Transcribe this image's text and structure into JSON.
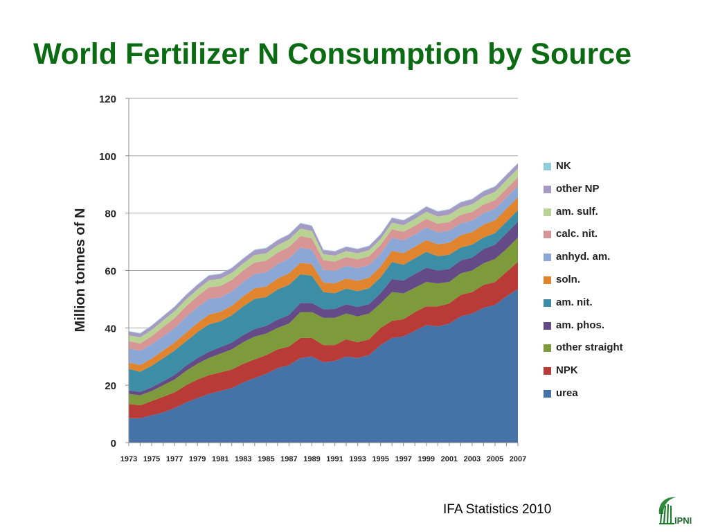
{
  "title": "World Fertilizer N Consumption by Source",
  "source": "IFA Statistics 2010",
  "logo_text": "IPNI",
  "chart_data": {
    "type": "area",
    "stacked": true,
    "ylabel": "Million tonnes of N",
    "ylim": [
      0,
      120
    ],
    "yticks": [
      0,
      20,
      40,
      60,
      80,
      100,
      120
    ],
    "grid": true,
    "legend_position": "right",
    "x": [
      1973,
      1974,
      1975,
      1976,
      1977,
      1978,
      1979,
      1980,
      1981,
      1982,
      1983,
      1984,
      1985,
      1986,
      1987,
      1988,
      1989,
      1990,
      1991,
      1992,
      1993,
      1994,
      1995,
      1996,
      1997,
      1998,
      1999,
      2000,
      2001,
      2002,
      2003,
      2004,
      2005,
      2006,
      2007
    ],
    "xtick_labels": [
      "1973",
      "1975",
      "1977",
      "1979",
      "1981",
      "1983",
      "1985",
      "1987",
      "1989",
      "1991",
      "1993",
      "1995",
      "1997",
      "1999",
      "2001",
      "2003",
      "2005",
      "2007"
    ],
    "series": [
      {
        "name": "urea",
        "color": "#4572a7",
        "values": [
          8.5,
          8.5,
          9.5,
          10.5,
          12,
          14,
          15.5,
          17,
          18,
          19,
          21,
          22.5,
          24,
          26,
          27,
          29.5,
          30,
          28,
          28.5,
          30,
          29.5,
          30.5,
          34,
          36.5,
          37,
          39,
          41,
          40.5,
          41.5,
          44,
          45,
          47,
          48,
          51,
          53.5
        ]
      },
      {
        "name": "NPK",
        "color": "#b93b38",
        "values": [
          5,
          4.5,
          5,
          5.5,
          5.5,
          6,
          6.5,
          6.5,
          6.5,
          6.5,
          6.5,
          6.5,
          6.5,
          6.5,
          6.5,
          7,
          6.5,
          6,
          5.5,
          6,
          5.5,
          5.5,
          6,
          6,
          6,
          6.5,
          6.5,
          7,
          7,
          7.5,
          7.5,
          8,
          8,
          8.5,
          9.5
        ]
      },
      {
        "name": "other straight",
        "color": "#7e9b3c",
        "values": [
          3.5,
          3.5,
          3.5,
          4,
          4.5,
          5,
          5.5,
          6,
          6.5,
          7,
          7.5,
          8,
          7.5,
          7.5,
          8,
          9,
          9,
          9.5,
          9.5,
          9,
          9,
          9,
          8.5,
          10,
          9,
          8.5,
          8.5,
          8,
          7.5,
          7.5,
          7.5,
          7.5,
          8,
          8,
          8.5
        ]
      },
      {
        "name": "am. phos.",
        "color": "#644a86",
        "values": [
          1.2,
          1.2,
          1.3,
          1.4,
          1.6,
          1.8,
          2,
          2.2,
          2.3,
          2.4,
          2.5,
          2.6,
          2.7,
          2.9,
          3,
          3.2,
          3.2,
          3,
          3.1,
          3.2,
          3.3,
          3.3,
          3.6,
          4.5,
          4.5,
          4.8,
          5,
          4.5,
          4.5,
          4.5,
          4.5,
          5,
          5,
          5.5,
          5.5
        ]
      },
      {
        "name": "am. nit.",
        "color": "#3b8ea5",
        "values": [
          7.5,
          7,
          7.5,
          8,
          8.5,
          8.5,
          9,
          9.5,
          9,
          9.5,
          10,
          10.5,
          10,
          10.5,
          10.5,
          10,
          9.5,
          6,
          5.5,
          5.5,
          5.5,
          5.5,
          5.5,
          6,
          5.5,
          5.5,
          5.5,
          5,
          5,
          4.5,
          4.5,
          4,
          4,
          4,
          4
        ]
      },
      {
        "name": "soln.",
        "color": "#e0852e",
        "values": [
          2.2,
          2.3,
          2.5,
          2.7,
          2.8,
          3,
          3.2,
          3.4,
          3.3,
          3.3,
          3.5,
          3.7,
          3.7,
          3.8,
          4,
          4,
          4,
          3.3,
          3.4,
          3.5,
          3.6,
          3.7,
          3.8,
          3.9,
          4,
          4,
          4.1,
          4.1,
          4.2,
          4.3,
          4.4,
          4.5,
          4.5,
          4.5,
          4.5
        ]
      },
      {
        "name": "anhyd. am.",
        "color": "#8ba7d5",
        "values": [
          5,
          5,
          5,
          5,
          5,
          5.5,
          5.5,
          5.5,
          5,
          5,
          5,
          5,
          5,
          5,
          5.2,
          5.3,
          5,
          4.4,
          4.4,
          4.4,
          4.4,
          4.4,
          4.4,
          4.5,
          4.5,
          4.3,
          4.4,
          4.2,
          4.2,
          4.1,
          4,
          4,
          4,
          4,
          4
        ]
      },
      {
        "name": "calc. nit.",
        "color": "#d79695",
        "values": [
          2.5,
          2.6,
          2.8,
          3.2,
          3.5,
          3.7,
          3.8,
          4,
          4,
          4,
          4,
          4,
          4,
          4,
          4,
          4,
          4,
          3.4,
          3.2,
          3.1,
          3.1,
          3.1,
          3.1,
          3,
          3,
          3,
          3,
          3,
          3,
          3,
          3,
          3,
          3,
          3,
          3
        ]
      },
      {
        "name": "am. sulf.",
        "color": "#b8d394",
        "values": [
          2,
          2.1,
          2.2,
          2.3,
          2.4,
          2.4,
          2.4,
          2.5,
          2.5,
          2.5,
          2.5,
          2.6,
          2.6,
          2.6,
          2.6,
          2.6,
          2.6,
          2.1,
          2.1,
          2.1,
          2.1,
          2.1,
          2.1,
          2.3,
          2.3,
          2.4,
          2.5,
          2.5,
          2.6,
          2.6,
          2.7,
          2.8,
          2.9,
          3,
          3
        ]
      },
      {
        "name": "other NP",
        "color": "#a699c3",
        "values": [
          1.3,
          1.3,
          1.4,
          1.4,
          1.5,
          1.5,
          1.6,
          1.6,
          1.6,
          1.6,
          1.6,
          1.7,
          1.7,
          1.7,
          1.7,
          1.8,
          1.7,
          1.4,
          1.4,
          1.4,
          1.4,
          1.4,
          1.5,
          1.6,
          1.6,
          1.6,
          1.7,
          1.7,
          1.7,
          1.7,
          1.7,
          1.8,
          1.8,
          1.8,
          1.8
        ]
      },
      {
        "name": "NK",
        "color": "#93cddd",
        "values": [
          0.2,
          0.2,
          0.2,
          0.2,
          0.2,
          0.2,
          0.2,
          0.2,
          0.2,
          0.2,
          0.2,
          0.2,
          0.2,
          0.2,
          0.2,
          0.2,
          0.2,
          0.2,
          0.2,
          0.2,
          0.2,
          0.2,
          0.2,
          0.2,
          0.2,
          0.2,
          0.2,
          0.2,
          0.2,
          0.2,
          0.2,
          0.2,
          0.2,
          0.2,
          0.2
        ]
      }
    ]
  }
}
